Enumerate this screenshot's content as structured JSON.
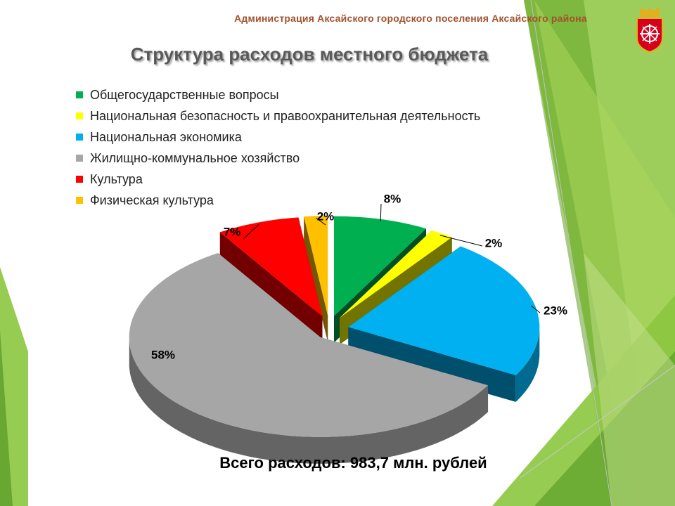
{
  "header": {
    "organization": "Администрация Аксайского городского поселения Аксайского района"
  },
  "chart_data": {
    "type": "pie",
    "title": "Структура расходов местного бюджета",
    "legend_position": "top-left",
    "series": [
      {
        "name": "Общегосударственные вопросы",
        "value": 8,
        "label": "8%",
        "color": "#00b050"
      },
      {
        "name": "Национальная безопасность и правоохранительная деятельность",
        "value": 2,
        "label": "2%",
        "color": "#ffff00"
      },
      {
        "name": "Национальная экономика",
        "value": 23,
        "label": "23%",
        "color": "#00b0f0"
      },
      {
        "name": "Жилищно-коммунальное хозяйство",
        "value": 58,
        "label": "58%",
        "color": "#a6a6a6"
      },
      {
        "name": "Культура",
        "value": 7,
        "label": "7%",
        "color": "#ff0000"
      },
      {
        "name": "Физическая культура",
        "value": 2,
        "label": "2%",
        "color": "#ffc000"
      }
    ]
  },
  "footer": {
    "total": "Всего расходов: 983,7 млн. рублей"
  },
  "icons": {
    "emblem": "coat-of-arms-icon"
  }
}
